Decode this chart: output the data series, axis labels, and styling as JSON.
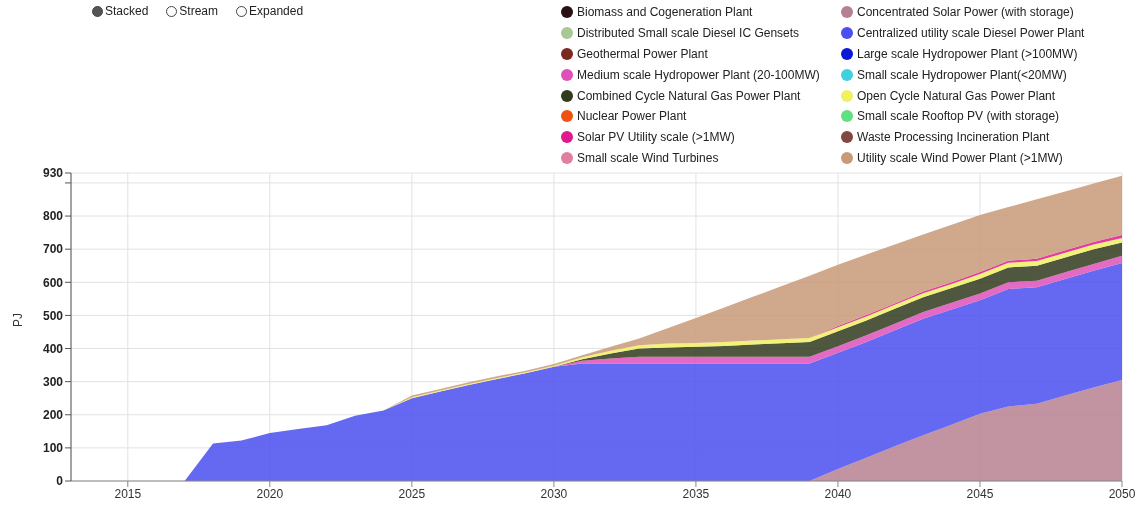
{
  "chart_data": {
    "type": "area",
    "stacked": true,
    "ylabel": "PJ",
    "annotations": [
      "Stacked",
      "Stream",
      "Expanded"
    ],
    "x": [
      2013,
      2014,
      2015,
      2016,
      2017,
      2018,
      2019,
      2020,
      2021,
      2022,
      2023,
      2024,
      2025,
      2026,
      2027,
      2028,
      2029,
      2030,
      2031,
      2032,
      2033,
      2034,
      2035,
      2036,
      2037,
      2038,
      2039,
      2040,
      2041,
      2042,
      2043,
      2044,
      2045,
      2046,
      2047,
      2048,
      2049,
      2050
    ],
    "xlim": [
      2013,
      2050
    ],
    "xticks": [
      2015,
      2020,
      2025,
      2030,
      2035,
      2040,
      2045,
      2050
    ],
    "ylim": [
      0,
      930
    ],
    "yticks": [
      0,
      100,
      200,
      300,
      400,
      500,
      600,
      700,
      800,
      {
        "value": 900,
        "label": null
      },
      930
    ],
    "grid": true,
    "legend": "top right",
    "series": [
      {
        "name": "Biomass and Cogeneration Plant",
        "color": "#2a0f14",
        "values": [
          null,
          null,
          null,
          null,
          null,
          null,
          null,
          null,
          null,
          null,
          null,
          null,
          null,
          null,
          null,
          null,
          null,
          null,
          null,
          null,
          null,
          null,
          null,
          null,
          null,
          null,
          null,
          null,
          null,
          null,
          null,
          null,
          null,
          null,
          null,
          null,
          null,
          null
        ]
      },
      {
        "name": "Concentrated Solar Power (with storage)",
        "color": "#b7808f",
        "values": [
          0,
          0,
          0,
          0,
          0,
          0,
          0,
          0,
          0,
          0,
          0,
          0,
          0,
          0,
          0,
          0,
          0,
          0,
          0,
          0,
          0,
          0,
          0,
          0,
          0,
          0,
          0,
          36,
          70,
          105,
          138,
          170,
          203,
          225,
          233,
          258,
          282,
          305
        ]
      },
      {
        "name": "Distributed Small scale Diesel IC Gensets",
        "color": "#a8c896",
        "values": [
          null,
          null,
          null,
          null,
          null,
          null,
          null,
          null,
          null,
          null,
          null,
          null,
          null,
          null,
          null,
          null,
          null,
          null,
          null,
          null,
          null,
          null,
          null,
          null,
          null,
          null,
          null,
          null,
          null,
          null,
          null,
          null,
          null,
          null,
          null,
          null,
          null,
          null
        ]
      },
      {
        "name": "Centralized utility scale Diesel Power Plant",
        "color": "#4a4ff0",
        "values": [
          0,
          0,
          0,
          0,
          0,
          113,
          122,
          145,
          157,
          168,
          197,
          213,
          250,
          270,
          290,
          308,
          325,
          345,
          355,
          355,
          355,
          355,
          355,
          355,
          355,
          355,
          355,
          351,
          350,
          350,
          352,
          348,
          343,
          355,
          352,
          352,
          353,
          353
        ]
      },
      {
        "name": "Geothermal Power Plant",
        "color": "#7a2a20",
        "values": [
          null,
          null,
          null,
          null,
          null,
          null,
          null,
          null,
          null,
          null,
          null,
          null,
          null,
          null,
          null,
          null,
          null,
          null,
          null,
          null,
          null,
          null,
          null,
          null,
          null,
          null,
          null,
          null,
          null,
          null,
          null,
          null,
          null,
          null,
          null,
          null,
          null,
          null
        ]
      },
      {
        "name": "Large scale Hydropower Plant (>100MW)",
        "color": "#0a18d8",
        "values": [
          null,
          null,
          null,
          null,
          null,
          null,
          null,
          null,
          null,
          null,
          null,
          null,
          null,
          null,
          null,
          null,
          null,
          null,
          null,
          null,
          null,
          null,
          null,
          null,
          null,
          null,
          null,
          null,
          null,
          null,
          null,
          null,
          null,
          null,
          null,
          null,
          null,
          null
        ]
      },
      {
        "name": "Medium scale Hydropower Plant (20-100MW)",
        "color": "#e050b8",
        "values": [
          0,
          0,
          0,
          0,
          0,
          0,
          0,
          0,
          0,
          0,
          0,
          0,
          0,
          0,
          0,
          0,
          0,
          0,
          8,
          15,
          20,
          20,
          20,
          20,
          20,
          20,
          20,
          20,
          20,
          20,
          20,
          20,
          20,
          20,
          20,
          20,
          20,
          22
        ]
      },
      {
        "name": "Small scale Hydropower Plant(<20MW)",
        "color": "#40d0e0",
        "values": [
          null,
          null,
          null,
          null,
          null,
          null,
          null,
          null,
          null,
          null,
          null,
          null,
          null,
          null,
          null,
          null,
          null,
          null,
          null,
          null,
          null,
          null,
          null,
          null,
          null,
          null,
          null,
          null,
          null,
          null,
          null,
          null,
          null,
          null,
          null,
          null,
          null,
          null
        ]
      },
      {
        "name": "Combined Cycle Natural Gas Power Plant",
        "color": "#303a1c",
        "values": [
          0,
          0,
          0,
          0,
          0,
          0,
          0,
          0,
          0,
          0,
          0,
          0,
          0,
          0,
          0,
          0,
          0,
          0,
          5,
          15,
          25,
          28,
          30,
          33,
          37,
          41,
          45,
          45,
          45,
          45,
          45,
          45,
          45,
          45,
          45,
          45,
          45,
          40
        ]
      },
      {
        "name": "Open Cycle Natural Gas Power Plant",
        "color": "#f0f060",
        "values": [
          0,
          0,
          0,
          0,
          0,
          0,
          0,
          0,
          0,
          0,
          0,
          0,
          3,
          3,
          3,
          3,
          3,
          3,
          6,
          8,
          10,
          12,
          12,
          12,
          12,
          12,
          12,
          12,
          12,
          12,
          12,
          12,
          14,
          14,
          14,
          14,
          14,
          14
        ]
      },
      {
        "name": "Nuclear Power Plant",
        "color": "#f05010",
        "values": [
          null,
          null,
          null,
          null,
          null,
          null,
          null,
          null,
          null,
          null,
          null,
          null,
          null,
          null,
          null,
          null,
          null,
          null,
          null,
          null,
          null,
          null,
          null,
          null,
          null,
          null,
          null,
          null,
          null,
          null,
          null,
          null,
          null,
          null,
          null,
          null,
          null,
          null
        ]
      },
      {
        "name": "Small scale Rooftop PV (with storage)",
        "color": "#60e080",
        "values": [
          null,
          null,
          null,
          null,
          null,
          null,
          null,
          null,
          null,
          null,
          null,
          null,
          null,
          null,
          null,
          null,
          null,
          null,
          null,
          null,
          null,
          null,
          null,
          null,
          null,
          null,
          null,
          null,
          null,
          null,
          null,
          null,
          null,
          null,
          null,
          null,
          null,
          null
        ]
      },
      {
        "name": "Solar PV Utility scale (>1MW)",
        "color": "#e01890",
        "values": [
          0,
          0,
          0,
          0,
          0,
          0,
          0,
          0,
          0,
          0,
          0,
          0,
          0,
          0,
          0,
          0,
          0,
          0,
          0,
          0,
          0,
          0,
          0,
          0,
          0,
          0,
          0,
          4,
          4,
          4,
          5,
          5,
          6,
          6,
          7,
          8,
          8,
          9
        ]
      },
      {
        "name": "Waste Processing Incineration Plant",
        "color": "#804840",
        "values": [
          null,
          null,
          null,
          null,
          null,
          null,
          null,
          null,
          null,
          null,
          null,
          null,
          null,
          null,
          null,
          null,
          null,
          null,
          null,
          null,
          null,
          null,
          null,
          null,
          null,
          null,
          null,
          null,
          null,
          null,
          null,
          null,
          null,
          null,
          null,
          null,
          null,
          null
        ]
      },
      {
        "name": "Small scale Wind Turbines",
        "color": "#e080a0",
        "values": [
          null,
          null,
          null,
          null,
          null,
          null,
          null,
          null,
          null,
          null,
          null,
          null,
          null,
          null,
          null,
          null,
          null,
          null,
          null,
          null,
          null,
          null,
          null,
          null,
          null,
          null,
          null,
          null,
          null,
          null,
          null,
          null,
          null,
          null,
          null,
          null,
          null,
          null
        ]
      },
      {
        "name": "Utility scale Wind Power Plant (>1MW)",
        "color": "#c89a78",
        "values": [
          0,
          0,
          0,
          0,
          0,
          0,
          0,
          0,
          0,
          0,
          0,
          0,
          5,
          5,
          5,
          5,
          5,
          5,
          6,
          12,
          20,
          46,
          75,
          104,
          132,
          160,
          188,
          185,
          183,
          178,
          172,
          174,
          172,
          162,
          180,
          177,
          176,
          179
        ]
      }
    ]
  }
}
